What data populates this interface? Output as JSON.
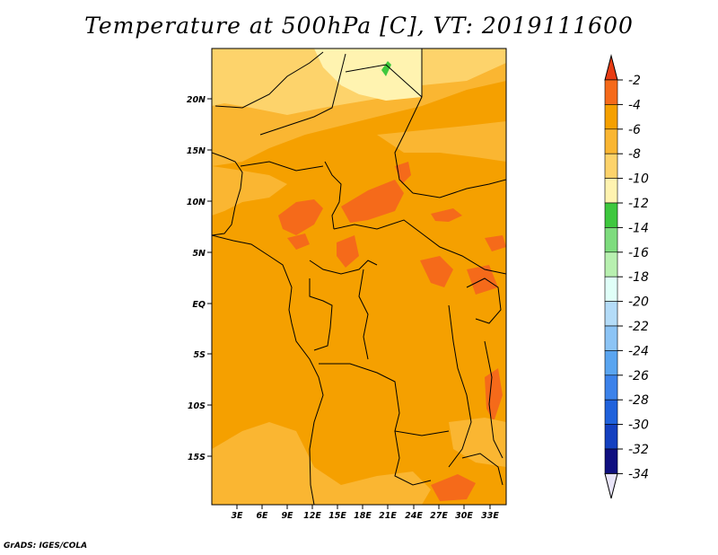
{
  "title": "Temperature at 500hPa [C], VT: 2019111600",
  "credit": "GrADS: IGES/COLA",
  "map": {
    "lat_labels": [
      "20N",
      "15N",
      "10N",
      "5N",
      "EQ",
      "5S",
      "10S",
      "15S"
    ],
    "lon_labels": [
      "3E",
      "6E",
      "9E",
      "12E",
      "15E",
      "18E",
      "21E",
      "24E",
      "27E",
      "30E",
      "33E"
    ],
    "base_fill": "#f5a000",
    "region_colors": {
      "warm": "#f56a1a",
      "medium": "#fab632",
      "light": "#fdd36b",
      "pale": "#fff3b0",
      "green": "#3ec83e"
    }
  },
  "colorbar": {
    "labels": [
      "-2",
      "-4",
      "-6",
      "-8",
      "-10",
      "-12",
      "-14",
      "-16",
      "-18",
      "-20",
      "-22",
      "-24",
      "-26",
      "-28",
      "-30",
      "-32",
      "-34"
    ],
    "colors": [
      "#e83c14",
      "#f56a1a",
      "#f5a000",
      "#fab632",
      "#fdd36b",
      "#fff3b0",
      "#3ec83e",
      "#7edc7e",
      "#b8f0b0",
      "#e0fff8",
      "#b4dcf8",
      "#8cc4f5",
      "#5aa5f0",
      "#3c82ea",
      "#2062dc",
      "#1440c0",
      "#101080"
    ],
    "under_color": "#e8e4f8"
  }
}
